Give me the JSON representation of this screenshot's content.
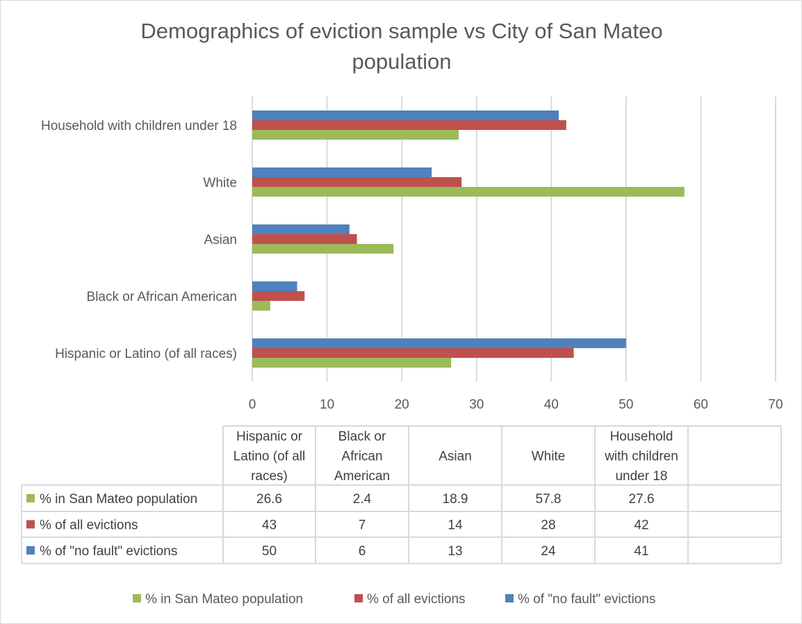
{
  "chart_data": {
    "type": "bar",
    "orientation": "horizontal",
    "title": "Demographics of eviction sample vs City of San Mateo population",
    "title_lines": [
      "Demographics of eviction sample vs City of San Mateo",
      "population"
    ],
    "categories": [
      "Hispanic or Latino (of all races)",
      "Black or African American",
      "Asian",
      "White",
      "Household with children under 18"
    ],
    "table_headers": [
      [
        "Hispanic or",
        "Latino (of all",
        "races)"
      ],
      [
        "Black or",
        "African",
        "American"
      ],
      [
        "Asian"
      ],
      [
        "White"
      ],
      [
        "Household",
        "with children",
        "under 18"
      ]
    ],
    "series": [
      {
        "name": "% in San Mateo population",
        "color": "#9BBB59",
        "values": [
          26.6,
          2.4,
          18.9,
          57.8,
          27.6
        ],
        "labels": [
          "26.6",
          "2.4",
          "18.9",
          "57.8",
          "27.6"
        ]
      },
      {
        "name": "% of all evictions",
        "color": "#C0504D",
        "values": [
          43,
          7,
          14,
          28,
          42
        ],
        "labels": [
          "43",
          "7",
          "14",
          "28",
          "42"
        ]
      },
      {
        "name": "% of \"no fault\" evictions",
        "color": "#4F81BD",
        "values": [
          50,
          6,
          13,
          24,
          41
        ],
        "labels": [
          "50",
          "6",
          "13",
          "24",
          "41"
        ]
      }
    ],
    "xlim": [
      0,
      70
    ],
    "xticks": [
      0,
      10,
      20,
      30,
      40,
      50,
      60,
      70
    ],
    "xtick_labels": [
      "0",
      "10",
      "20",
      "30",
      "40",
      "50",
      "60",
      "70"
    ],
    "grid": true,
    "legend_position": "bottom",
    "has_data_table": true
  }
}
